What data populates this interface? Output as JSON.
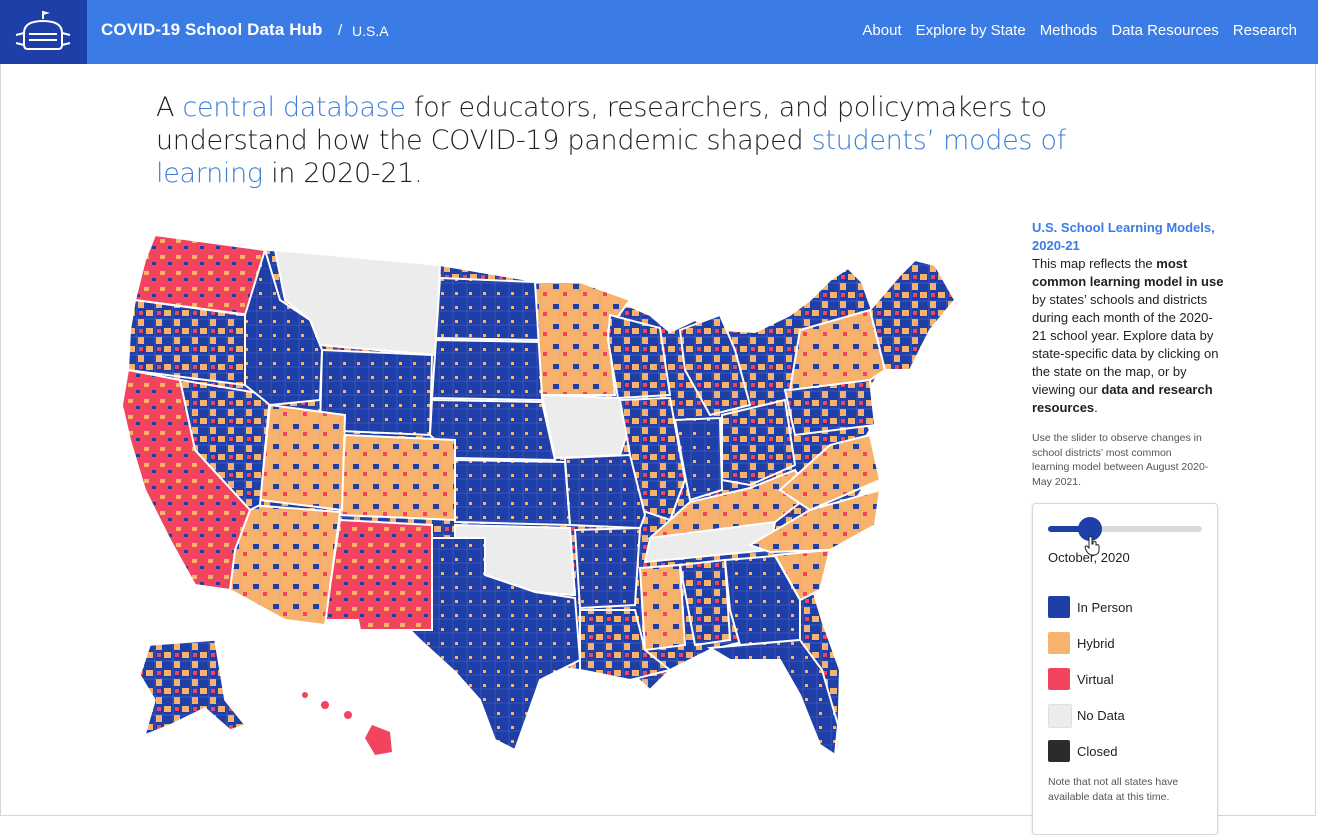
{
  "header": {
    "brand": "COVID-19 School Data Hub",
    "separator": "/",
    "breadcrumb": "U.S.A",
    "nav": [
      "About",
      "Explore by State",
      "Methods",
      "Data Resources",
      "Research"
    ]
  },
  "headline": {
    "part1": "A ",
    "link1": "central database",
    "part2": " for educators, researchers, and policymakers to understand how the COVID-19 pandemic shaped ",
    "link2": "students’ modes of learning",
    "part3": " in 2020-21."
  },
  "sidebar": {
    "title": "U.S. School Learning Models, 2020-21",
    "text_a": "This map reflects the ",
    "text_bold_a": "most common learning model in use",
    "text_b": " by states’ schools and districts during each month of the 2020-21 school year. Explore data by state-specific data by clicking on the state on the map, or by viewing our ",
    "text_bold_b": "data and research resources",
    "text_c": ".",
    "slider_hint": "Use the slider to observe changes in school districts’ most common learning model between August 2020-May 2021."
  },
  "panel": {
    "slider_value": 0.27,
    "slider_label": "October, 2020",
    "legend": [
      {
        "label": "In Person",
        "color": "#1e3ea8"
      },
      {
        "label": "Hybrid",
        "color": "#f7b36d"
      },
      {
        "label": "Virtual",
        "color": "#f2445e"
      },
      {
        "label": "No Data",
        "color": "#ececec"
      },
      {
        "label": "Closed",
        "color": "#2b2b2b"
      }
    ],
    "note": "Note that not all states have available data at this time."
  },
  "colors": {
    "header": "#3b7be6",
    "logo_bg": "#1e3ea8",
    "in_person": "#1e3ea8",
    "hybrid": "#f7b36d",
    "virtual": "#f2445e",
    "no_data": "#ececec",
    "closed": "#2b2b2b"
  },
  "icons": {
    "logo": "school-mask-logo-icon",
    "cursor": "hand-pointer-icon"
  }
}
